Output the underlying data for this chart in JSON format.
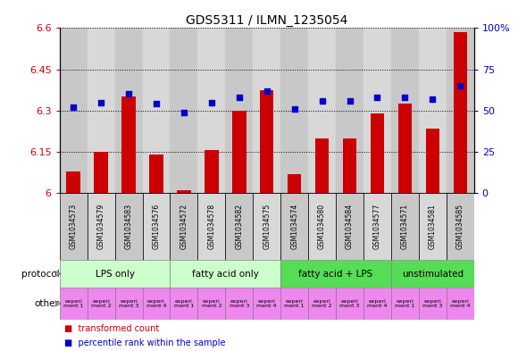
{
  "title": "GDS5311 / ILMN_1235054",
  "samples": [
    "GSM1034573",
    "GSM1034579",
    "GSM1034583",
    "GSM1034576",
    "GSM1034572",
    "GSM1034578",
    "GSM1034582",
    "GSM1034575",
    "GSM1034574",
    "GSM1034580",
    "GSM1034584",
    "GSM1034577",
    "GSM1034571",
    "GSM1034581",
    "GSM1034585"
  ],
  "transformed_count": [
    6.08,
    6.15,
    6.35,
    6.14,
    6.01,
    6.155,
    6.3,
    6.375,
    6.07,
    6.2,
    6.2,
    6.29,
    6.325,
    6.235,
    6.585
  ],
  "percentile_rank": [
    52,
    55,
    60,
    54,
    49,
    55,
    58,
    62,
    51,
    56,
    56,
    58,
    58,
    57,
    65
  ],
  "ylim_left": [
    6.0,
    6.6
  ],
  "ylim_right": [
    0,
    100
  ],
  "yticks_left": [
    6.0,
    6.15,
    6.3,
    6.45,
    6.6
  ],
  "yticks_right": [
    0,
    25,
    50,
    75,
    100
  ],
  "ytick_labels_left": [
    "6",
    "6.15",
    "6.3",
    "6.45",
    "6.6"
  ],
  "ytick_labels_right": [
    "0",
    "25",
    "50",
    "75",
    "100%"
  ],
  "bar_color": "#cc0000",
  "dot_color": "#0000cc",
  "protocol_groups": [
    {
      "label": "LPS only",
      "start": 0,
      "end": 4,
      "color": "#ccffcc"
    },
    {
      "label": "fatty acid only",
      "start": 4,
      "end": 8,
      "color": "#ccffcc"
    },
    {
      "label": "fatty acid + LPS",
      "start": 8,
      "end": 12,
      "color": "#55dd55"
    },
    {
      "label": "unstimulated",
      "start": 12,
      "end": 15,
      "color": "#55dd55"
    }
  ],
  "other_groups_color": "#ee88ee",
  "other_labels": [
    "experi\nment 1",
    "experi\nment 2",
    "experi\nment 3",
    "experi\nment 4",
    "experi\nment 1",
    "experi\nment 2",
    "experi\nment 3",
    "experi\nment 4",
    "experi\nment 1",
    "experi\nment 2",
    "experi\nment 3",
    "experi\nment 4",
    "experi\nment 1",
    "experi\nment 3",
    "experi\nment 4"
  ],
  "col_bg_even": "#c8c8c8",
  "col_bg_odd": "#d8d8d8",
  "left_axis_color": "#cc0000",
  "right_axis_color": "#0000cc"
}
